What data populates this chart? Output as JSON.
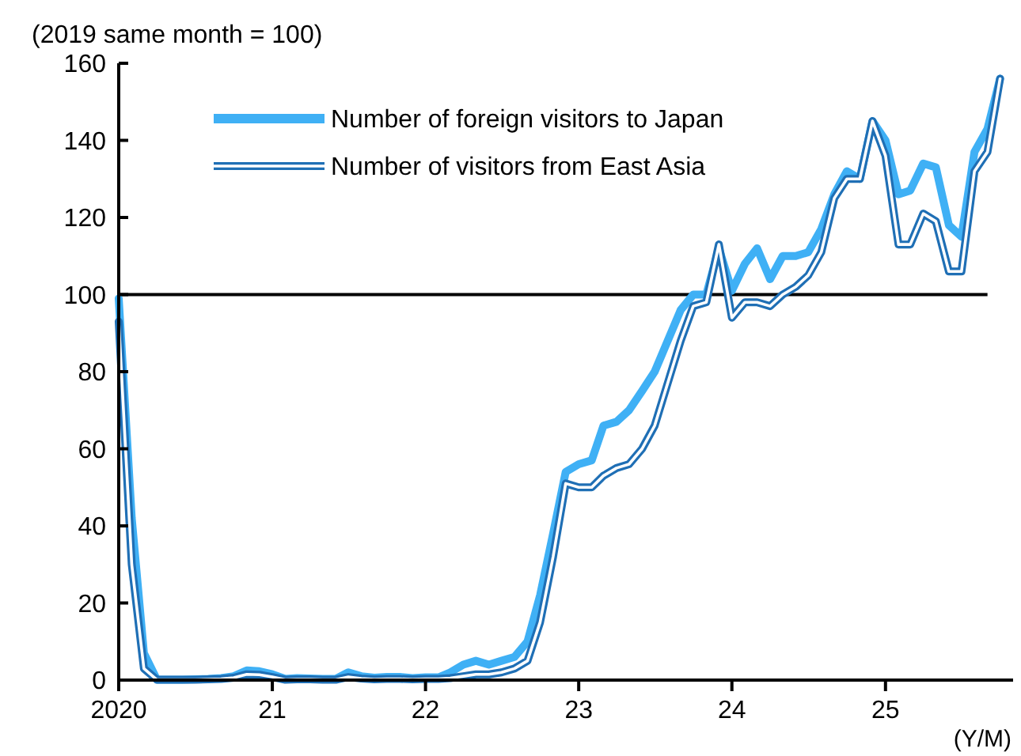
{
  "chart_data": {
    "type": "line",
    "ylabel": "(2019 same month = 100)",
    "xlabel": "(Y/M)",
    "x": [
      "2020-01",
      "2020-02",
      "2020-03",
      "2020-04",
      "2020-05",
      "2020-06",
      "2020-07",
      "2020-08",
      "2020-09",
      "2020-10",
      "2020-11",
      "2020-12",
      "2021-01",
      "2021-02",
      "2021-03",
      "2021-04",
      "2021-05",
      "2021-06",
      "2021-07",
      "2021-08",
      "2021-09",
      "2021-10",
      "2021-11",
      "2021-12",
      "2022-01",
      "2022-02",
      "2022-03",
      "2022-04",
      "2022-05",
      "2022-06",
      "2022-07",
      "2022-08",
      "2022-09",
      "2022-10",
      "2022-11",
      "2022-12",
      "2023-01",
      "2023-02",
      "2023-03",
      "2023-04",
      "2023-05",
      "2023-06",
      "2023-07",
      "2023-08",
      "2023-09",
      "2023-10",
      "2023-11",
      "2023-12",
      "2024-01",
      "2024-02",
      "2024-03",
      "2024-04",
      "2024-05",
      "2024-06",
      "2024-07",
      "2024-08",
      "2024-09",
      "2024-10",
      "2024-11",
      "2024-12",
      "2025-01",
      "2025-02",
      "2025-03",
      "2025-04",
      "2025-05",
      "2025-06",
      "2025-07",
      "2025-08",
      "2025-09",
      "2025-10"
    ],
    "series": [
      {
        "name": "Number of foreign visitors to Japan",
        "color": "#3fb0f5",
        "values": [
          99,
          42,
          7,
          0.1,
          0.1,
          0.1,
          0.2,
          0.3,
          0.5,
          1,
          2.5,
          2.3,
          1.5,
          0.3,
          0.5,
          0.4,
          0.3,
          0.3,
          2,
          1,
          0.6,
          0.8,
          0.8,
          0.5,
          0.7,
          0.7,
          2,
          4,
          5,
          4,
          5,
          6,
          10,
          22,
          38,
          54,
          56,
          57,
          66,
          67,
          70,
          75,
          80,
          88,
          96,
          100,
          100,
          112,
          101,
          108,
          112,
          104,
          110,
          110,
          111,
          117,
          126,
          132,
          130,
          145,
          140,
          126,
          127,
          134,
          133,
          118,
          115,
          137,
          143,
          156
        ]
      },
      {
        "name": "Number of visitors from East Asia",
        "color": "#1f6fb5",
        "values": [
          93,
          30,
          3,
          0.1,
          0.1,
          0.1,
          0.1,
          0.2,
          0.3,
          0.6,
          1.5,
          1.4,
          0.8,
          0.1,
          0.2,
          0.2,
          0.1,
          0.1,
          0.8,
          0.4,
          0.2,
          0.3,
          0.3,
          0.2,
          0.3,
          0.3,
          0.5,
          1,
          1.5,
          1.5,
          2,
          3,
          5,
          15,
          32,
          51,
          50,
          50,
          53,
          55,
          56,
          60,
          66,
          77,
          88,
          97,
          98,
          113,
          94,
          98,
          98,
          97,
          100,
          102,
          105,
          111,
          125,
          130,
          130,
          145,
          136,
          113,
          113,
          121,
          119,
          106,
          106,
          132,
          137,
          156
        ]
      }
    ],
    "xlim": [
      "2020-01",
      "2025-11"
    ],
    "xticks": [
      {
        "value": "2020-01",
        "label": "2020"
      },
      {
        "value": "2021-01",
        "label": "21"
      },
      {
        "value": "2022-01",
        "label": "22"
      },
      {
        "value": "2023-01",
        "label": "23"
      },
      {
        "value": "2024-01",
        "label": "24"
      },
      {
        "value": "2025-01",
        "label": "25"
      }
    ],
    "ylim": [
      0,
      160
    ],
    "yticks": [
      0,
      20,
      40,
      60,
      80,
      100,
      120,
      140,
      160
    ],
    "ref_lines": [
      {
        "axis": "y",
        "value": 100,
        "color": "#000000"
      }
    ],
    "legend": "top left",
    "grid": false
  }
}
